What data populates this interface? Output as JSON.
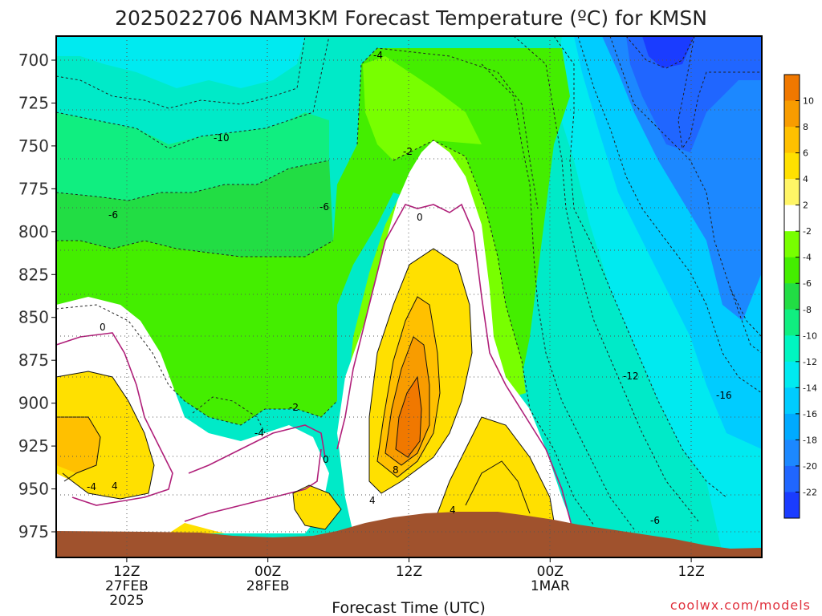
{
  "chart_data": {
    "type": "heatmap",
    "title": "2025022706 NAM3KM Forecast Temperature (ºC) for KMSN",
    "xlabel": "Forecast Time (UTC)",
    "ylabel": "",
    "y_ticks": [
      "700",
      "725",
      "750",
      "775",
      "800",
      "825",
      "850",
      "875",
      "900",
      "925",
      "950",
      "975"
    ],
    "y_values": [
      700,
      725,
      750,
      775,
      800,
      825,
      850,
      875,
      900,
      925,
      950,
      975
    ],
    "ylim": [
      690,
      990
    ],
    "x_ticks": [
      {
        "line1": "12Z",
        "line2": "27FEB",
        "line3": "2025"
      },
      {
        "line1": "00Z",
        "line2": "28FEB",
        "line3": ""
      },
      {
        "line1": "12Z",
        "line2": "",
        "line3": ""
      },
      {
        "line1": "00Z",
        "line2": "1MAR",
        "line3": ""
      },
      {
        "line1": "12Z",
        "line2": "",
        "line3": ""
      }
    ],
    "x_hours": [
      12,
      24,
      36,
      48,
      60
    ],
    "xlim": [
      6,
      66
    ],
    "colorbar": {
      "levels": [
        10,
        8,
        6,
        4,
        2,
        -2,
        -4,
        -6,
        -8,
        -10,
        -12,
        -14,
        -16,
        -18,
        -20,
        -22
      ],
      "colors": [
        "#f07800",
        "#f89c00",
        "#ffc000",
        "#ffe000",
        "#fff566",
        "#ffffff",
        "#78ff00",
        "#44ee00",
        "#22dd44",
        "#10ee80",
        "#00f5c0",
        "#00eaf0",
        "#00ccff",
        "#00aaff",
        "#1c88ff",
        "#2066ff",
        "#1a3cff"
      ]
    },
    "contour_labels": [
      "-4",
      "-2",
      "0",
      "-10",
      "-6",
      "-6",
      "0",
      "-2",
      "-4",
      "0",
      "-4",
      "4",
      "4",
      "8",
      "4",
      "-12",
      "-16",
      "-6"
    ],
    "legend": "right colorbar",
    "grid": true
  },
  "credit": "coolwx.com/models"
}
